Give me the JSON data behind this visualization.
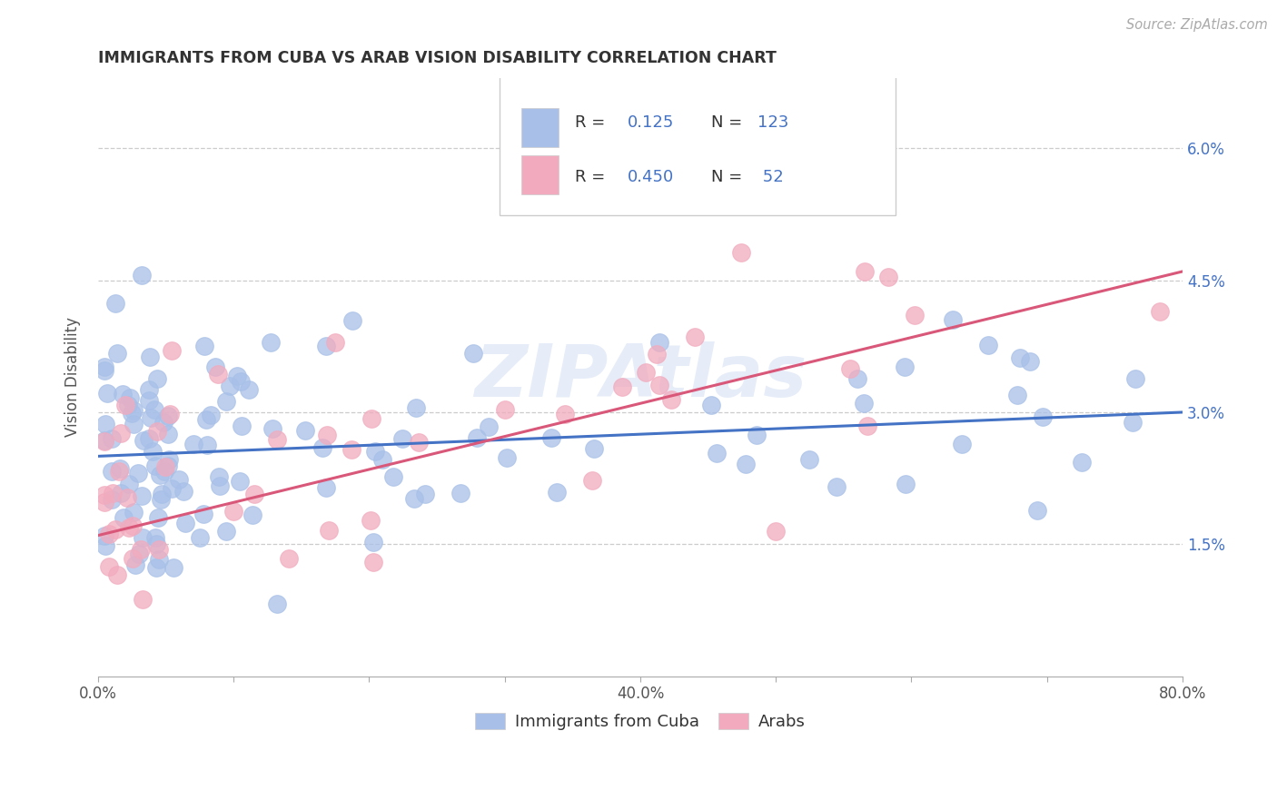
{
  "title": "IMMIGRANTS FROM CUBA VS ARAB VISION DISABILITY CORRELATION CHART",
  "source": "Source: ZipAtlas.com",
  "ylabel": "Vision Disability",
  "xlim": [
    0.0,
    0.8
  ],
  "ylim": [
    0.0,
    0.068
  ],
  "xtick_positions": [
    0.0,
    0.1,
    0.2,
    0.3,
    0.4,
    0.5,
    0.6,
    0.7,
    0.8
  ],
  "xticklabels": [
    "0.0%",
    "",
    "",
    "",
    "40.0%",
    "",
    "",
    "",
    "80.0%"
  ],
  "ytick_positions": [
    0.015,
    0.03,
    0.045,
    0.06
  ],
  "yticklabels": [
    "1.5%",
    "3.0%",
    "4.5%",
    "6.0%"
  ],
  "blue_color": "#A8C0E8",
  "pink_color": "#F2ABBE",
  "blue_line_color": "#4472C4",
  "pink_line_color": "#D9587A",
  "watermark": "ZIPAtlas",
  "legend_R_blue": "0.125",
  "legend_N_blue": "123",
  "legend_R_pink": "0.450",
  "legend_N_pink": "52",
  "legend_num_color": "#4472C4",
  "blue_trend_x": [
    0.0,
    0.8
  ],
  "blue_trend_y": [
    0.025,
    0.03
  ],
  "pink_trend_x": [
    0.0,
    0.8
  ],
  "pink_trend_y": [
    0.016,
    0.046
  ]
}
